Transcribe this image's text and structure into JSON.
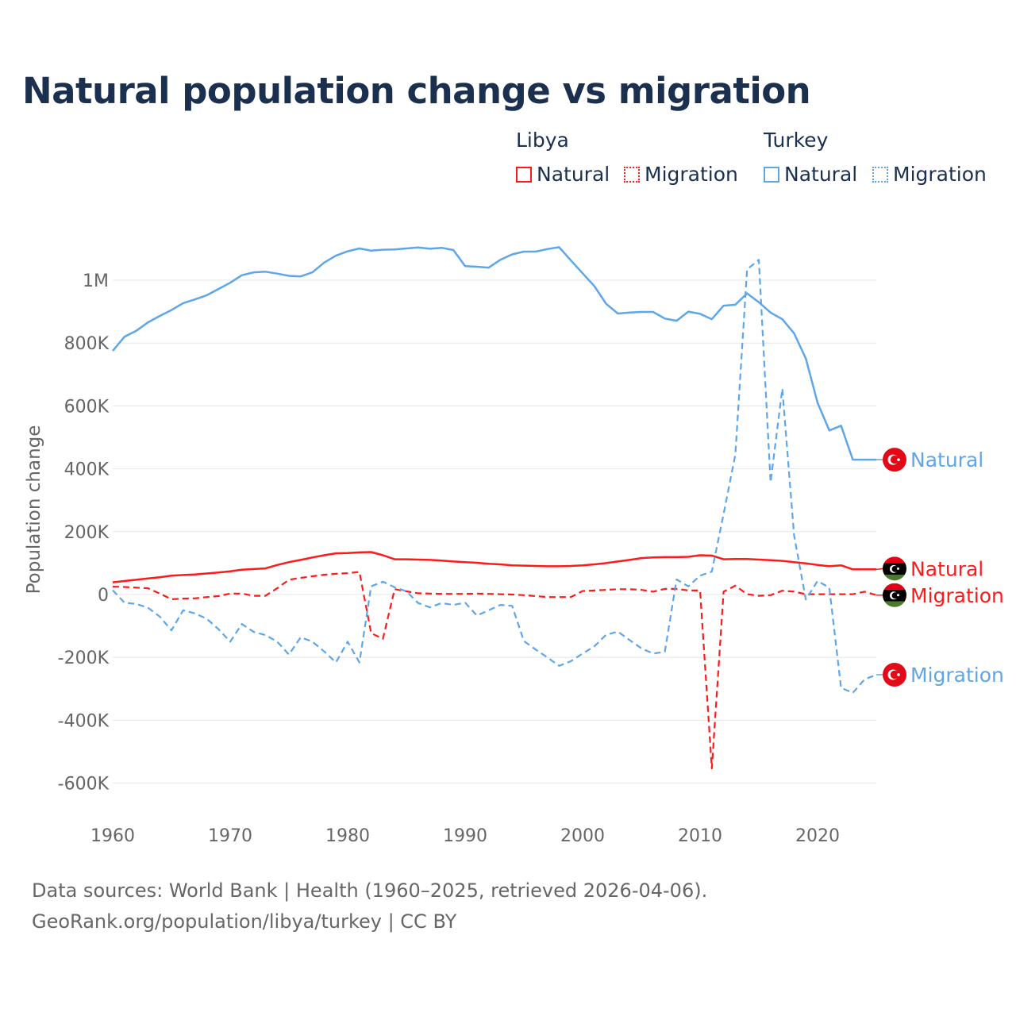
{
  "title": "Natural population change vs migration",
  "legend": {
    "groups": [
      {
        "name": "Libya",
        "items": [
          "Natural",
          "Migration"
        ]
      },
      {
        "name": "Turkey",
        "items": [
          "Natural",
          "Migration"
        ]
      }
    ]
  },
  "footer": {
    "line1": "Data sources: World Bank | Health (1960–2025, retrieved 2026-04-06).",
    "line2": "GeoRank.org/population/libya/turkey | CC BY"
  },
  "colors": {
    "libya": "#ff1a1a",
    "turkey": "#5ea6e9",
    "title": "#1b2f4e"
  },
  "chart_data": {
    "type": "line",
    "title": "Natural population change vs migration",
    "xlabel": "",
    "ylabel": "Population change",
    "xlim": [
      1960,
      2025
    ],
    "ylim": [
      -700000,
      1120000
    ],
    "x_ticks": [
      1960,
      1970,
      1980,
      1990,
      2000,
      2010,
      2020
    ],
    "x_tick_labels": [
      "1960",
      "1970",
      "1980",
      "1990",
      "2000",
      "2010",
      "2020"
    ],
    "y_ticks": [
      -600000,
      -400000,
      -200000,
      0,
      200000,
      400000,
      600000,
      800000,
      1000000
    ],
    "y_tick_labels": [
      "-600K",
      "-400K",
      "-200K",
      "0",
      "200K",
      "400K",
      "600K",
      "800K",
      "1M"
    ],
    "grid": true,
    "legend_position": "top-right",
    "x": [
      1960,
      1961,
      1962,
      1963,
      1964,
      1965,
      1966,
      1967,
      1968,
      1969,
      1970,
      1971,
      1972,
      1973,
      1974,
      1975,
      1976,
      1977,
      1978,
      1979,
      1980,
      1981,
      1982,
      1983,
      1984,
      1985,
      1986,
      1987,
      1988,
      1989,
      1990,
      1991,
      1992,
      1993,
      1994,
      1995,
      1996,
      1997,
      1998,
      1999,
      2000,
      2001,
      2002,
      2003,
      2004,
      2005,
      2006,
      2007,
      2008,
      2009,
      2010,
      2011,
      2012,
      2013,
      2014,
      2015,
      2016,
      2017,
      2018,
      2019,
      2020,
      2021,
      2022,
      2023,
      2024,
      2025
    ],
    "series": [
      {
        "name": "Libya Natural",
        "country": "Libya",
        "kind": "Natural",
        "color": "#ff1a1a",
        "dash": "solid",
        "end_label": "Natural",
        "values": [
          39000,
          43000,
          47000,
          51000,
          55000,
          60000,
          62000,
          64000,
          67000,
          70000,
          74000,
          79000,
          81000,
          83000,
          94000,
          103000,
          110000,
          118000,
          125000,
          131000,
          132000,
          134000,
          135000,
          125000,
          112000,
          112000,
          111000,
          110000,
          108000,
          105000,
          103000,
          101000,
          98000,
          96000,
          93000,
          92000,
          91000,
          90000,
          90000,
          91000,
          93000,
          96000,
          100000,
          105000,
          110000,
          116000,
          118000,
          119000,
          119000,
          120000,
          125000,
          124000,
          112000,
          113000,
          113000,
          111000,
          109000,
          107000,
          103000,
          99000,
          94000,
          90000,
          93000,
          80000,
          80000,
          80000
        ]
      },
      {
        "name": "Libya Migration",
        "country": "Libya",
        "kind": "Migration",
        "color": "#ff1a1a",
        "dash": "dashed",
        "end_label": "Migration",
        "values": [
          25000,
          24000,
          22000,
          20000,
          3000,
          -15000,
          -13000,
          -12000,
          -8000,
          -5000,
          3000,
          3000,
          -4000,
          -4000,
          20000,
          47000,
          53000,
          58000,
          63000,
          66000,
          68000,
          72000,
          -123000,
          -141000,
          17000,
          10000,
          4000,
          3000,
          2000,
          2000,
          2000,
          3000,
          2000,
          1000,
          0,
          -2000,
          -5000,
          -8000,
          -8000,
          -8000,
          11000,
          13000,
          15000,
          17000,
          17000,
          15000,
          9000,
          18000,
          18000,
          13000,
          13000,
          -553000,
          9000,
          28000,
          1000,
          -4000,
          -2000,
          12000,
          9000,
          1000,
          1000,
          1000,
          1000,
          1000,
          9000,
          -2000
        ]
      },
      {
        "name": "Turkey Natural",
        "country": "Turkey",
        "kind": "Natural",
        "color": "#5ea6e9",
        "dash": "solid",
        "end_label": "Natural",
        "values": [
          775000,
          820000,
          839000,
          866000,
          886000,
          905000,
          927000,
          939000,
          952000,
          972000,
          992000,
          1016000,
          1025000,
          1027000,
          1021000,
          1014000,
          1012000,
          1025000,
          1056000,
          1078000,
          1092000,
          1101000,
          1094000,
          1097000,
          1098000,
          1101000,
          1104000,
          1100000,
          1103000,
          1096000,
          1045000,
          1043000,
          1040000,
          1065000,
          1082000,
          1091000,
          1091000,
          1099000,
          1105000,
          1063000,
          1022000,
          981000,
          925000,
          894000,
          897000,
          899000,
          899000,
          878000,
          871000,
          900000,
          893000,
          876000,
          919000,
          922000,
          958000,
          930000,
          897000,
          876000,
          831000,
          751000,
          610000,
          522000,
          537000,
          429000,
          429000,
          429000
        ]
      },
      {
        "name": "Turkey Migration",
        "country": "Turkey",
        "kind": "Migration",
        "color": "#5ea6e9",
        "dash": "dashed",
        "end_label": "Migration",
        "values": [
          14000,
          -26000,
          -30000,
          -42000,
          -70000,
          -114000,
          -50000,
          -60000,
          -77000,
          -110000,
          -150000,
          -94000,
          -119000,
          -129000,
          -150000,
          -191000,
          -136000,
          -150000,
          -181000,
          -216000,
          -150000,
          -216000,
          26000,
          41000,
          23000,
          10000,
          -27000,
          -41000,
          -27000,
          -33000,
          -26000,
          -67000,
          -50000,
          -33000,
          -36000,
          -148000,
          -175000,
          -200000,
          -227000,
          -212000,
          -188000,
          -165000,
          -128000,
          -118000,
          -145000,
          -171000,
          -188000,
          -182000,
          48000,
          26000,
          60000,
          73000,
          256000,
          445000,
          1034000,
          1065000,
          357000,
          655000,
          189000,
          -16000,
          43000,
          22000,
          -297000,
          -313000,
          -270000,
          -255000
        ]
      }
    ]
  }
}
